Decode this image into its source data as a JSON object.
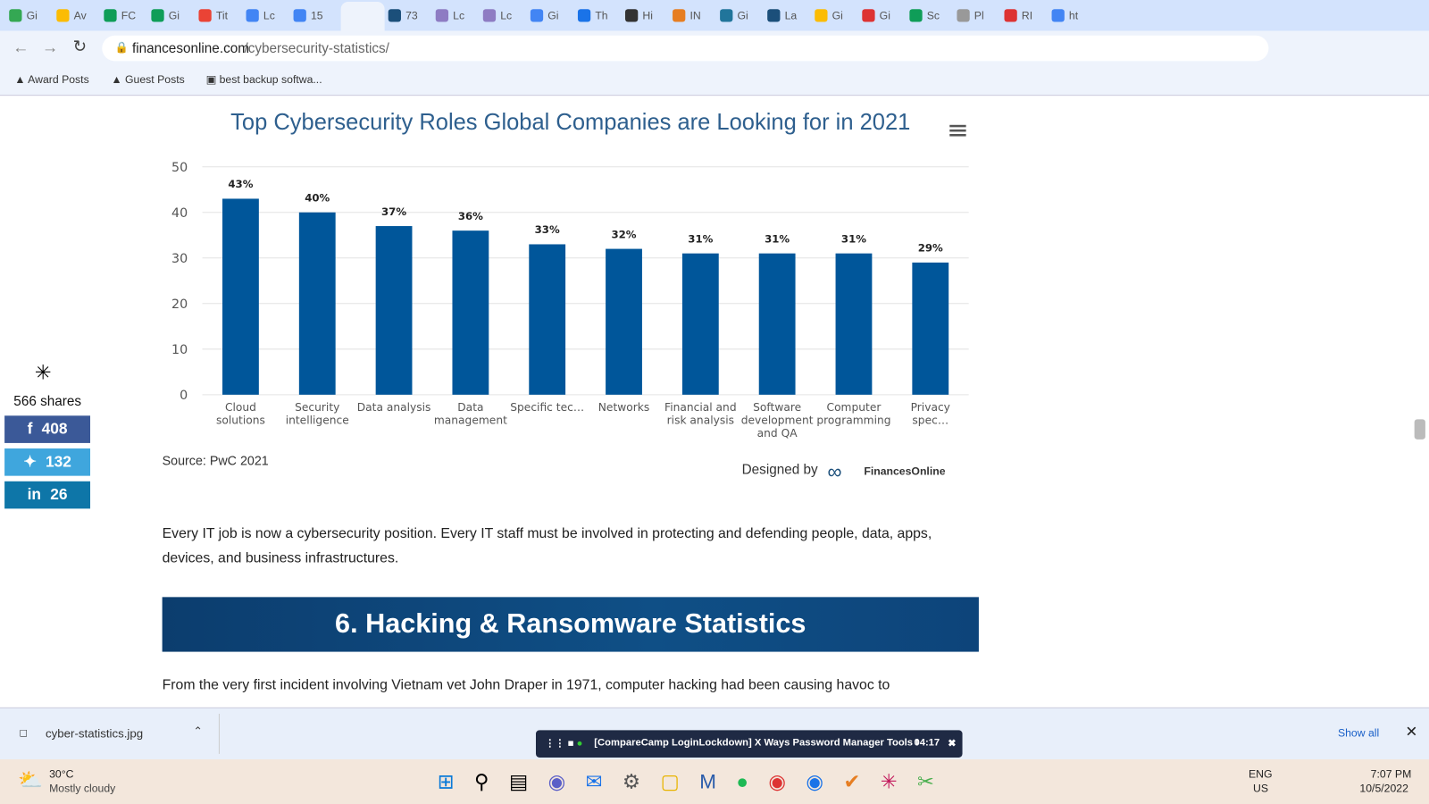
{
  "browser": {
    "tabs": [
      "Gi",
      "Av",
      "FC",
      "Gi",
      "Tit",
      "Lc",
      "15",
      "73",
      "Lc",
      "Lc",
      "Gi",
      "Th",
      "Hi",
      "IN",
      "Gi",
      "La",
      "Gi",
      "Gi",
      "Sc",
      "Pl",
      "RI",
      "ht"
    ],
    "url_domain": "financesonline.com",
    "url_path": "/cybersecurity-statistics/",
    "bookmarks": [
      "Award Posts",
      "Guest Posts",
      "best backup softwa..."
    ]
  },
  "chart_data": {
    "type": "bar",
    "title": "Top Cybersecurity Roles Global Companies are Looking for in 2021",
    "categories": [
      "Cloud solutions",
      "Security intelligence",
      "Data analysis",
      "Data management",
      "Specific tec…",
      "Networks",
      "Financial and risk analysis",
      "Software development and QA",
      "Computer programming",
      "Privacy spec…"
    ],
    "values": [
      43,
      40,
      37,
      36,
      33,
      32,
      31,
      31,
      31,
      29
    ],
    "value_labels": [
      "43%",
      "40%",
      "37%",
      "36%",
      "33%",
      "32%",
      "31%",
      "31%",
      "31%",
      "29%"
    ],
    "color": "#00569a",
    "ylim": [
      0,
      50
    ],
    "yticks": [
      0,
      10,
      20,
      30,
      40,
      50
    ],
    "grid": true,
    "source": "Source: PwC 2021",
    "credit": "Designed by",
    "brand": "FinancesOnline"
  },
  "share": {
    "total": "566 shares",
    "facebook": "408",
    "twitter": "132",
    "linkedin": "26"
  },
  "article": {
    "paragraph": "Every IT job is now a cybersecurity position. Every IT staff must be involved in protecting and defending people, data, apps, devices, and business infrastructures.",
    "heading": "6. Hacking & Ransomware Statistics",
    "next": "From the very first incident involving Vietnam vet John Draper in 1971, computer hacking had been causing havoc to"
  },
  "downloads": {
    "file": "cyber-statistics.jpg",
    "show_all": "Show all"
  },
  "media": {
    "title": "[CompareCamp LoginLockdown] X Ways Password Manager Tools I",
    "time": "04:17"
  },
  "taskbar": {
    "temp": "30°C",
    "weather": "Mostly cloudy",
    "lang": "ENG",
    "region": "US",
    "time": "7:07 PM",
    "date": "10/5/2022"
  }
}
